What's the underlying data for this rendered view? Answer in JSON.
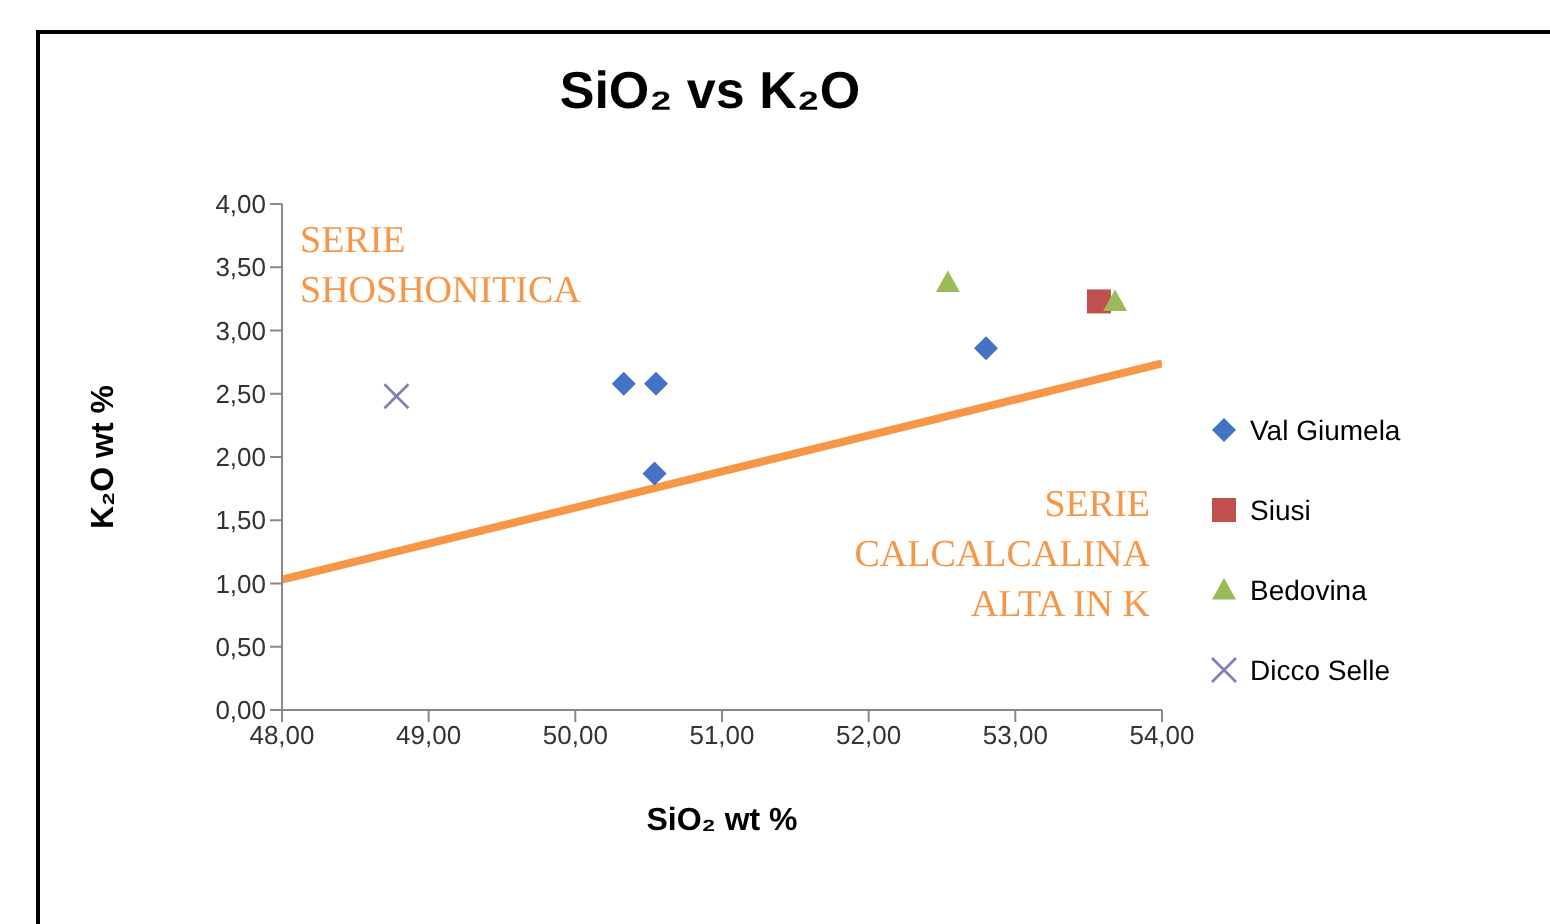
{
  "chart_data": {
    "type": "scatter",
    "title": "SiO₂ vs K₂O",
    "xlabel": "SiO₂ wt %",
    "ylabel": "K₂O wt %",
    "xlim": [
      48,
      54
    ],
    "xticks": [
      {
        "value": 48,
        "label": "48,00"
      },
      {
        "value": 49,
        "label": "49,00"
      },
      {
        "value": 50,
        "label": "50,00"
      },
      {
        "value": 51,
        "label": "51,00"
      },
      {
        "value": 52,
        "label": "52,00"
      },
      {
        "value": 53,
        "label": "53,00"
      },
      {
        "value": 54,
        "label": "54,00"
      }
    ],
    "ylim": [
      0,
      4
    ],
    "yticks": [
      {
        "value": 0,
        "label": "0,00"
      },
      {
        "value": 0.5,
        "label": "0,50"
      },
      {
        "value": 1,
        "label": "1,00"
      },
      {
        "value": 1.5,
        "label": "1,50"
      },
      {
        "value": 2,
        "label": "2,00"
      },
      {
        "value": 2.5,
        "label": "2,50"
      },
      {
        "value": 3,
        "label": "3,00"
      },
      {
        "value": 3.5,
        "label": "3,50"
      },
      {
        "value": 4,
        "label": "4,00"
      }
    ],
    "grid": false,
    "legend": "right",
    "series": [
      {
        "name": "Val Giumela",
        "color": "#4472c4",
        "marker": "diamond",
        "x": [
          50.33,
          50.55,
          50.54,
          52.8
        ],
        "values": [
          2.58,
          2.58,
          1.87,
          2.86
        ]
      },
      {
        "name": "Siusi",
        "color": "#c0504d",
        "marker": "square",
        "x": [
          53.57
        ],
        "values": [
          3.23
        ]
      },
      {
        "name": "Bedovina",
        "color": "#9bbb59",
        "marker": "triangle",
        "x": [
          52.54,
          53.68
        ],
        "values": [
          3.38,
          3.23
        ]
      },
      {
        "name": "Dicco Selle",
        "color": "#8080b0",
        "marker": "cross",
        "x": [
          48.78
        ],
        "values": [
          2.48
        ]
      },
      {
        "type": "line",
        "color": "#f79646",
        "marker": "none",
        "x": [
          48,
          54
        ],
        "values": [
          1.03,
          2.74
        ]
      }
    ],
    "annotations": [
      "SERIE\nSHOSHONITICA",
      "SERIE\nCALCALCALINA\nALTA IN K"
    ]
  }
}
